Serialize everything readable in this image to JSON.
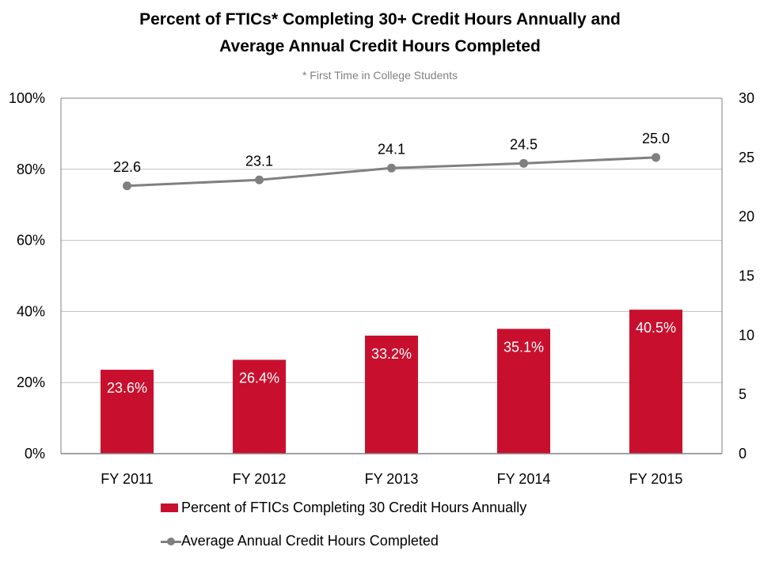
{
  "colors": {
    "bar": "#C8102E",
    "line": "#808080",
    "grid": "#BFBFBF",
    "axis": "#808080"
  },
  "chart_data": {
    "type": "bar",
    "title": "Percent of FTICs* Completing 30+ Credit Hours Annually and Average Annual Credit Hours Completed",
    "title_lines": [
      "Percent of FTICs*  Completing 30+ Credit Hours Annually and",
      "Average Annual  Credit Hours Completed"
    ],
    "subtitle": "* First Time in College Students",
    "categories": [
      "FY 2011",
      "FY 2012",
      "FY 2013",
      "FY 2014",
      "FY 2015"
    ],
    "series": [
      {
        "name": "Percent of FTICs Completing 30 Credit Hours Annually",
        "type": "bar",
        "axis": "left",
        "values": [
          23.6,
          26.4,
          33.2,
          35.1,
          40.5
        ],
        "labels": [
          "23.6%",
          "26.4%",
          "33.2%",
          "35.1%",
          "40.5%"
        ]
      },
      {
        "name": "Average Annual Credit Hours Completed",
        "type": "line",
        "axis": "right",
        "values": [
          22.6,
          23.1,
          24.1,
          24.5,
          25.0
        ],
        "labels": [
          "22.6",
          "23.1",
          "24.1",
          "24.5",
          "25.0"
        ]
      }
    ],
    "y_left": {
      "ylim": [
        0,
        100
      ],
      "ticks": [
        0,
        20,
        40,
        60,
        80,
        100
      ],
      "tick_labels": [
        "0%",
        "20%",
        "40%",
        "60%",
        "80%",
        "100%"
      ]
    },
    "y_right": {
      "ylim": [
        0,
        30
      ],
      "ticks": [
        0,
        5,
        10,
        15,
        20,
        25,
        30
      ],
      "tick_labels": [
        "0",
        "5",
        "10",
        "15",
        "20",
        "25",
        "30"
      ]
    },
    "xlabel": "",
    "ylabel": "",
    "grid": true,
    "legend_position": "bottom"
  }
}
